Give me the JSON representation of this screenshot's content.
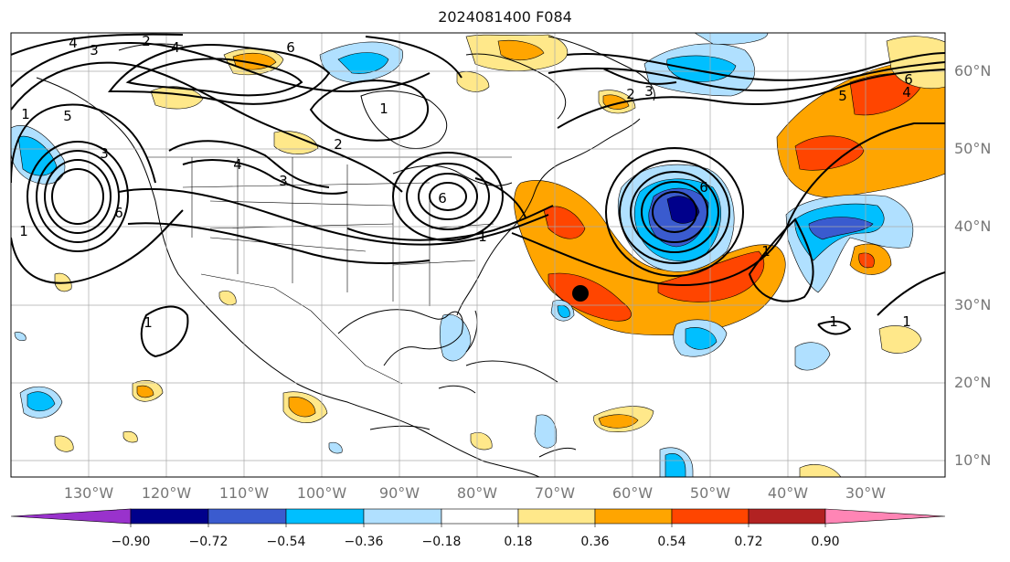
{
  "title": "2024081400 F084",
  "longitude_labels": [
    "130°W",
    "120°W",
    "110°W",
    "100°W",
    "90°W",
    "80°W",
    "70°W",
    "60°W",
    "50°W",
    "40°W",
    "30°W"
  ],
  "latitude_labels": [
    "60°N",
    "50°N",
    "40°N",
    "30°N",
    "20°N",
    "10°N"
  ],
  "contour_labels": [
    "4",
    "3",
    "2",
    "4",
    "6",
    "1",
    "5",
    "6",
    "3",
    "1",
    "4",
    "3",
    "2",
    "1",
    "6",
    "3",
    "2",
    "6",
    "1",
    "6",
    "5",
    "4",
    "1",
    "1",
    "1",
    "1"
  ],
  "colorbar": {
    "tick_labels": [
      "−0.90",
      "−0.72",
      "−0.54",
      "−0.36",
      "−0.18",
      "0.18",
      "0.36",
      "0.54",
      "0.72",
      "0.90"
    ],
    "colors": [
      "#9932cc",
      "#00008b",
      "#3a5bcf",
      "#00bfff",
      "#b0e0ff",
      "#ffffff",
      "#ffe88a",
      "#ffa500",
      "#ff4500",
      "#b22222",
      "#ff85b5"
    ]
  },
  "marker": {
    "name": "black-dot",
    "lon": -67,
    "lat": 32
  }
}
